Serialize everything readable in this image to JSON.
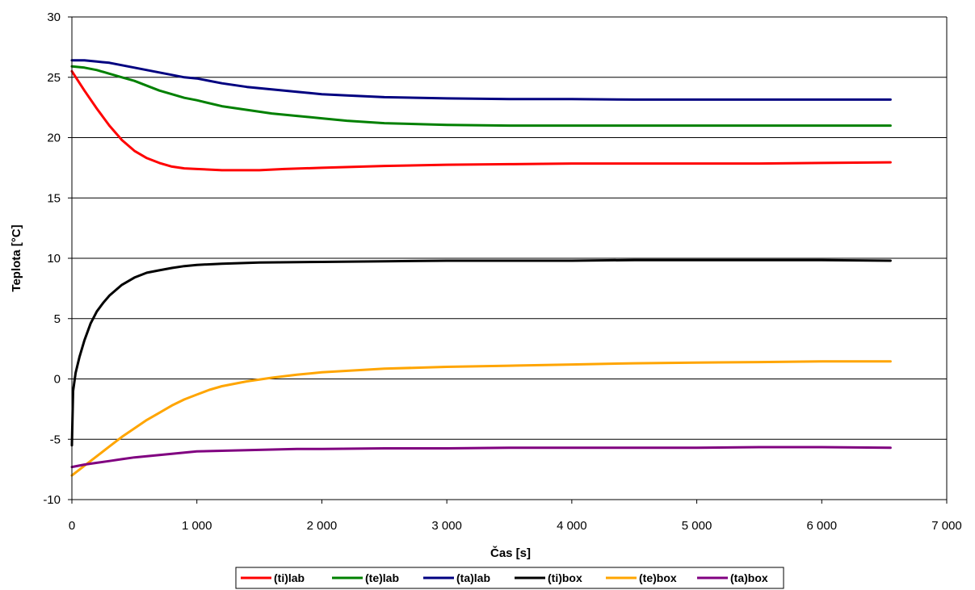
{
  "chart_data": {
    "type": "line",
    "xlabel": "Čas [s]",
    "ylabel": "Teplota [°C]",
    "xlim": [
      0,
      7000
    ],
    "ylim": [
      -10,
      30
    ],
    "x_ticks": [
      0,
      1000,
      2000,
      3000,
      4000,
      5000,
      6000,
      7000
    ],
    "x_tick_labels": [
      "0",
      "1 000",
      "2 000",
      "3 000",
      "4 000",
      "5 000",
      "6 000",
      "7 000"
    ],
    "y_ticks": [
      -10,
      -5,
      0,
      5,
      10,
      15,
      20,
      25,
      30
    ],
    "y_tick_labels": [
      "-10",
      "-5",
      "0",
      "5",
      "10",
      "15",
      "20",
      "25",
      "30"
    ],
    "grid": "horizontal",
    "legend_position": "bottom",
    "series": [
      {
        "name": "(ti)lab",
        "color": "#ff0000",
        "x": [
          0,
          100,
          200,
          300,
          400,
          500,
          600,
          700,
          800,
          900,
          1000,
          1100,
          1200,
          1300,
          1500,
          1700,
          2000,
          2500,
          3000,
          3500,
          4000,
          4500,
          5000,
          5500,
          6000,
          6550
        ],
        "y": [
          25.5,
          23.9,
          22.4,
          21.0,
          19.8,
          18.9,
          18.3,
          17.9,
          17.6,
          17.45,
          17.4,
          17.35,
          17.3,
          17.3,
          17.3,
          17.4,
          17.5,
          17.65,
          17.75,
          17.8,
          17.85,
          17.85,
          17.85,
          17.85,
          17.9,
          17.95
        ]
      },
      {
        "name": "(te)lab",
        "color": "#008000",
        "x": [
          0,
          100,
          200,
          300,
          400,
          500,
          600,
          700,
          800,
          900,
          1000,
          1200,
          1400,
          1600,
          1800,
          2000,
          2200,
          2500,
          3000,
          3500,
          4000,
          4500,
          5000,
          5500,
          6000,
          6550
        ],
        "y": [
          25.9,
          25.8,
          25.6,
          25.3,
          25.0,
          24.7,
          24.3,
          23.9,
          23.6,
          23.3,
          23.1,
          22.6,
          22.3,
          22.0,
          21.8,
          21.6,
          21.4,
          21.2,
          21.05,
          21.0,
          21.0,
          21.0,
          21.0,
          21.0,
          21.0,
          21.0
        ]
      },
      {
        "name": "(ta)lab",
        "color": "#000080",
        "x": [
          0,
          100,
          200,
          300,
          400,
          500,
          600,
          700,
          800,
          900,
          1000,
          1200,
          1400,
          1600,
          1800,
          2000,
          2200,
          2500,
          3000,
          3500,
          4000,
          4500,
          5000,
          5500,
          6000,
          6550
        ],
        "y": [
          26.4,
          26.4,
          26.3,
          26.2,
          26.0,
          25.8,
          25.6,
          25.4,
          25.2,
          25.0,
          24.9,
          24.5,
          24.2,
          24.0,
          23.8,
          23.6,
          23.5,
          23.35,
          23.25,
          23.2,
          23.2,
          23.15,
          23.15,
          23.15,
          23.15,
          23.15
        ]
      },
      {
        "name": "(ti)box",
        "color": "#000000",
        "x": [
          0,
          10,
          30,
          60,
          100,
          150,
          200,
          250,
          300,
          400,
          500,
          600,
          700,
          800,
          900,
          1000,
          1200,
          1500,
          2000,
          2500,
          3000,
          3500,
          4000,
          4500,
          5000,
          5500,
          6000,
          6550
        ],
        "y": [
          -5.5,
          -1.0,
          0.5,
          1.8,
          3.2,
          4.6,
          5.6,
          6.3,
          6.9,
          7.8,
          8.4,
          8.8,
          9.0,
          9.2,
          9.35,
          9.45,
          9.55,
          9.65,
          9.7,
          9.75,
          9.8,
          9.8,
          9.8,
          9.85,
          9.85,
          9.85,
          9.85,
          9.8
        ]
      },
      {
        "name": "(te)box",
        "color": "#ffa500",
        "x": [
          0,
          100,
          200,
          300,
          400,
          500,
          600,
          700,
          800,
          900,
          1000,
          1100,
          1200,
          1400,
          1600,
          1800,
          2000,
          2500,
          3000,
          3500,
          4000,
          4500,
          5000,
          5500,
          6000,
          6550
        ],
        "y": [
          -8.0,
          -7.2,
          -6.4,
          -5.6,
          -4.8,
          -4.1,
          -3.4,
          -2.8,
          -2.2,
          -1.7,
          -1.3,
          -0.9,
          -0.6,
          -0.2,
          0.1,
          0.35,
          0.55,
          0.85,
          1.0,
          1.1,
          1.2,
          1.3,
          1.35,
          1.4,
          1.45,
          1.45
        ]
      },
      {
        "name": "(ta)box",
        "color": "#800080",
        "x": [
          0,
          100,
          200,
          300,
          400,
          500,
          600,
          700,
          800,
          900,
          1000,
          1200,
          1400,
          1600,
          1800,
          2000,
          2500,
          3000,
          3500,
          4000,
          4500,
          5000,
          5500,
          6000,
          6550
        ],
        "y": [
          -7.3,
          -7.1,
          -6.95,
          -6.8,
          -6.65,
          -6.5,
          -6.4,
          -6.3,
          -6.2,
          -6.1,
          -6.0,
          -5.95,
          -5.9,
          -5.85,
          -5.8,
          -5.8,
          -5.75,
          -5.75,
          -5.7,
          -5.7,
          -5.7,
          -5.7,
          -5.65,
          -5.65,
          -5.7
        ]
      }
    ]
  }
}
